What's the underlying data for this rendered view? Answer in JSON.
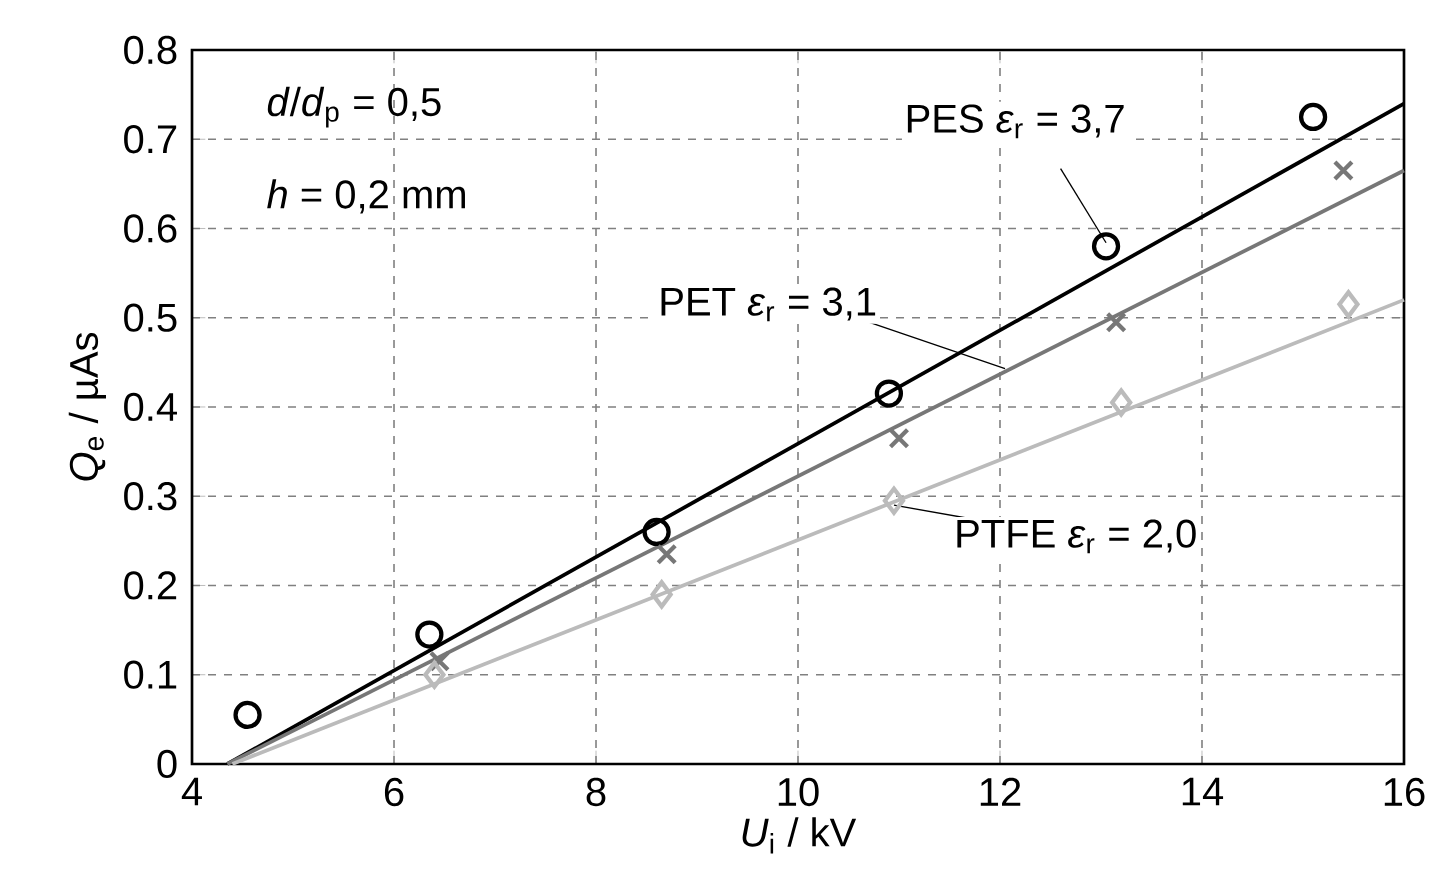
{
  "chart_data": {
    "type": "scatter",
    "xlabel": "*U*$_{i}$ / kV",
    "ylabel": "*Q*$_{e}$ / µAs",
    "xlim": [
      4,
      16
    ],
    "ylim": [
      0,
      0.8
    ],
    "xticks": [
      4,
      6,
      8,
      10,
      12,
      14,
      16
    ],
    "yticks": [
      0,
      0.1,
      0.2,
      0.3,
      0.4,
      0.5,
      0.6,
      0.7,
      0.8
    ],
    "grid": true,
    "series": [
      {
        "marker": "circle",
        "color": "#000000",
        "x": [
          4.55,
          6.35,
          8.6,
          10.9,
          13.05,
          15.1
        ],
        "values": [
          0.055,
          0.145,
          0.26,
          0.415,
          0.58,
          0.725
        ]
      },
      {
        "marker": "cross",
        "color": "#777777",
        "x": [
          6.45,
          8.7,
          11.0,
          13.15,
          15.4
        ],
        "values": [
          0.115,
          0.235,
          0.365,
          0.495,
          0.665
        ]
      },
      {
        "marker": "diamond",
        "color": "#bbbbbb",
        "x": [
          6.4,
          8.65,
          10.95,
          13.2,
          15.45
        ],
        "values": [
          0.1,
          0.19,
          0.295,
          0.405,
          0.515
        ]
      },
      {
        "type": "line",
        "marker": "none",
        "color": "#000000",
        "x": [
          4.35,
          16
        ],
        "values": [
          0,
          0.74
        ]
      },
      {
        "type": "line",
        "marker": "none",
        "color": "#777777",
        "x": [
          4.35,
          16
        ],
        "values": [
          0,
          0.665
        ]
      },
      {
        "type": "line",
        "marker": "none",
        "color": "#bbbbbb",
        "x": [
          4.4,
          16
        ],
        "values": [
          0,
          0.52
        ]
      }
    ],
    "annotations": [
      "*d*/*d*$_{p}$ = 0,5",
      "*h* = 0,2 mm",
      {
        "text": "PES *ε*$_{r}$ = 3,7",
        "x": 13.05,
        "y": 0.584
      },
      {
        "text": "PET *ε*$_{r}$ = 3,1",
        "x": 12.05,
        "y": 0.443
      },
      {
        "text": "PTFE *ε*$_{r}$ = 2,0",
        "x": 10.95,
        "y": 0.29
      }
    ]
  }
}
